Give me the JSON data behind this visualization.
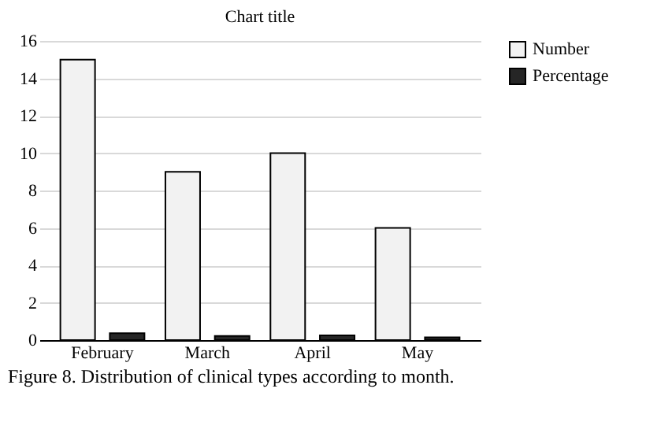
{
  "chart_data": {
    "type": "bar",
    "title": "Chart title",
    "categories": [
      "February",
      "March",
      "April",
      "May"
    ],
    "series": [
      {
        "name": "Number",
        "color": "#f2f2f2",
        "values": [
          15,
          9,
          10,
          6
        ]
      },
      {
        "name": "Percentage",
        "color": "#262626",
        "values": [
          0.37,
          0.22,
          0.25,
          0.15
        ]
      }
    ],
    "ylim": [
      0,
      16
    ],
    "yticks": [
      0,
      2,
      4,
      6,
      8,
      10,
      12,
      14,
      16
    ],
    "grid": "y",
    "legend": "right",
    "annotations": [
      "Figure 8. Distribution of clinical types according to month."
    ]
  }
}
